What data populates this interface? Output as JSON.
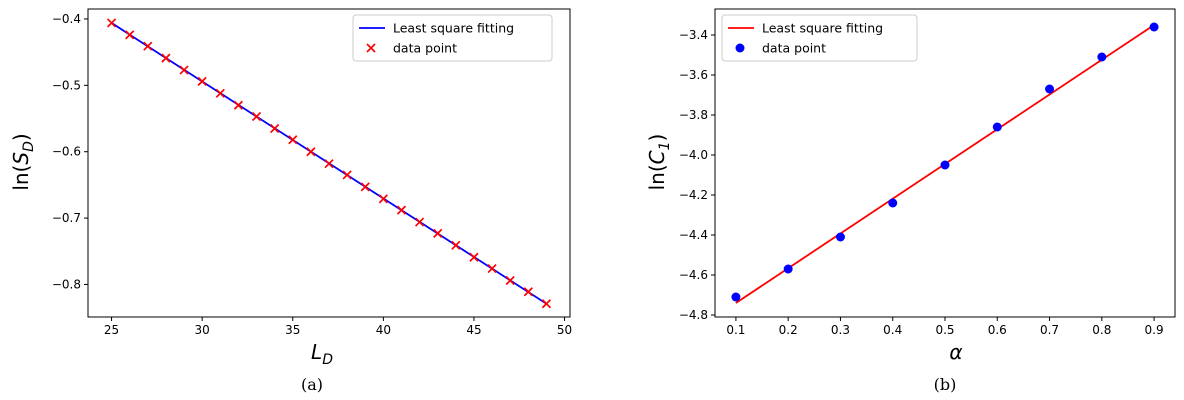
{
  "chart_data": [
    {
      "type": "line+scatter",
      "caption": "(a)",
      "xlabel": {
        "main": "L",
        "sub": "D"
      },
      "ylabel": {
        "pre": "ln(",
        "main": "S",
        "sub": "D",
        "post": ")"
      },
      "xlim": [
        23.7,
        50.3
      ],
      "ylim": [
        -0.849,
        -0.385
      ],
      "xticks": [
        25,
        30,
        35,
        40,
        45,
        50
      ],
      "yticks": [
        -0.8,
        -0.7,
        -0.6,
        -0.5,
        -0.4
      ],
      "xtick_labels": [
        "25",
        "30",
        "35",
        "40",
        "45",
        "50"
      ],
      "ytick_labels": [
        "−0.8",
        "−0.7",
        "−0.6",
        "−0.5",
        "−0.4"
      ],
      "legend_position": "top-right",
      "series": [
        {
          "name": "Least square fitting",
          "kind": "line",
          "color": "#0000ff",
          "x": [
            25,
            49
          ],
          "y": [
            -0.406,
            -0.829
          ]
        },
        {
          "name": "data point",
          "kind": "scatter",
          "marker": "x",
          "color": "#ff0000",
          "x": [
            25,
            26,
            27,
            28,
            29,
            30,
            31,
            32,
            33,
            34,
            35,
            36,
            37,
            38,
            39,
            40,
            41,
            42,
            43,
            44,
            45,
            46,
            47,
            48,
            49
          ],
          "y": [
            -0.406,
            -0.424,
            -0.441,
            -0.459,
            -0.477,
            -0.494,
            -0.512,
            -0.53,
            -0.547,
            -0.565,
            -0.582,
            -0.6,
            -0.618,
            -0.635,
            -0.653,
            -0.671,
            -0.688,
            -0.706,
            -0.723,
            -0.741,
            -0.759,
            -0.776,
            -0.794,
            -0.811,
            -0.829
          ]
        }
      ]
    },
    {
      "type": "line+scatter",
      "caption": "(b)",
      "xlabel": {
        "main": "α"
      },
      "ylabel": {
        "pre": "ln(",
        "main": "C",
        "sub": "1",
        "post": ")"
      },
      "xlim": [
        0.06,
        0.94
      ],
      "ylim": [
        -4.81,
        -3.27
      ],
      "xticks": [
        0.1,
        0.2,
        0.3,
        0.4,
        0.5,
        0.6,
        0.7,
        0.8,
        0.9
      ],
      "yticks": [
        -4.8,
        -4.6,
        -4.4,
        -4.2,
        -4.0,
        -3.8,
        -3.6,
        -3.4
      ],
      "xtick_labels": [
        "0.1",
        "0.2",
        "0.3",
        "0.4",
        "0.5",
        "0.6",
        "0.7",
        "0.8",
        "0.9"
      ],
      "ytick_labels": [
        "−4.8",
        "−4.6",
        "−4.4",
        "−4.2",
        "−4.0",
        "−3.8",
        "−3.6",
        "−3.4"
      ],
      "legend_position": "top-left",
      "series": [
        {
          "name": "Least square fitting",
          "kind": "line",
          "color": "#ff0000",
          "x": [
            0.1,
            0.9
          ],
          "y": [
            -4.74,
            -3.35
          ]
        },
        {
          "name": "data point",
          "kind": "scatter",
          "marker": "circle",
          "color": "#0000ff",
          "x": [
            0.1,
            0.2,
            0.3,
            0.4,
            0.5,
            0.6,
            0.7,
            0.8,
            0.9
          ],
          "y": [
            -4.71,
            -4.57,
            -4.41,
            -4.24,
            -4.05,
            -3.86,
            -3.67,
            -3.51,
            -3.36
          ]
        }
      ]
    }
  ]
}
